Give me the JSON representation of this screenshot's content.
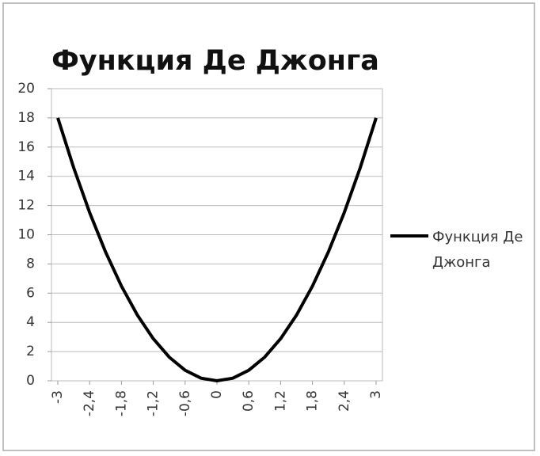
{
  "chart_data": {
    "type": "line",
    "title": "Функция Де Джонга",
    "x": [
      -3,
      -2.7,
      -2.4,
      -2.1,
      -1.8,
      -1.5,
      -1.2,
      -0.9,
      -0.6,
      -0.3,
      0,
      0.3,
      0.6,
      0.9,
      1.2,
      1.5,
      1.8,
      2.1,
      2.4,
      2.7,
      3
    ],
    "series": [
      {
        "name": "Функция Де Джонга",
        "color": "#000000",
        "values": [
          18,
          14.58,
          11.52,
          8.82,
          6.48,
          4.5,
          2.88,
          1.62,
          0.72,
          0.18,
          0,
          0.18,
          0.72,
          1.62,
          2.88,
          4.5,
          6.48,
          8.82,
          11.52,
          14.58,
          18
        ]
      }
    ],
    "xlim": [
      -3,
      3
    ],
    "xticks": [
      -3,
      {
        "value": -2.4,
        "label": "-2,4"
      },
      {
        "value": -1.8,
        "label": "-1,8"
      },
      {
        "value": -1.2,
        "label": "-1,2"
      },
      {
        "value": -0.6,
        "label": "-0,6"
      },
      0,
      {
        "value": 0.6,
        "label": "0,6"
      },
      {
        "value": 1.2,
        "label": "1,2"
      },
      {
        "value": 1.8,
        "label": "1,8"
      },
      {
        "value": 2.4,
        "label": "2,4"
      },
      3
    ],
    "ylim": [
      0,
      20
    ],
    "yticks": [
      0,
      2,
      4,
      6,
      8,
      10,
      12,
      14,
      16,
      18,
      20
    ],
    "grid": true,
    "legend": "right"
  }
}
